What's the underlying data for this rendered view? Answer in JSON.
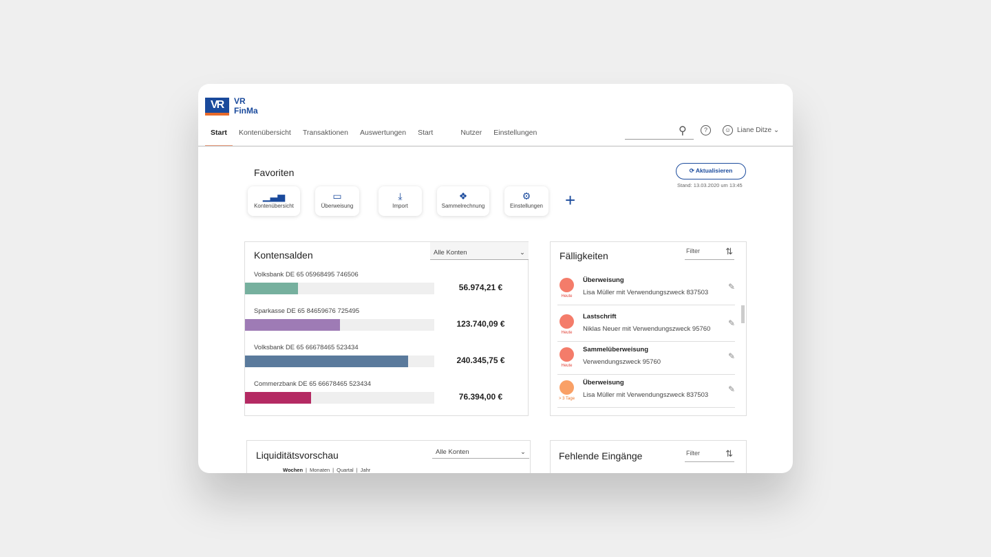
{
  "brand": {
    "line1": "VR",
    "line2": "FinMa",
    "logo_text": "VR"
  },
  "nav": {
    "items": [
      "Start",
      "Kontenübersicht",
      "Transaktionen",
      "Auswertungen",
      "Start",
      "Nutzer",
      "Einstellungen"
    ],
    "active": "Start"
  },
  "header": {
    "user": "Liane Ditze",
    "search_placeholder": ""
  },
  "favorites": {
    "title": "Favoriten",
    "items": [
      {
        "label": "Kontenübersicht",
        "icon": "bar-chart-icon"
      },
      {
        "label": "Überweisung",
        "icon": "card-icon"
      },
      {
        "label": "Import",
        "icon": "import-icon"
      },
      {
        "label": "Sammelrechnung",
        "icon": "money-icon"
      },
      {
        "label": "Einstellungen",
        "icon": "gear-icon"
      }
    ],
    "add": "+"
  },
  "refresh": {
    "label": "Aktualisieren",
    "stand": "Stand: 13.03.2020 um 13:45"
  },
  "kontensalden": {
    "title": "Kontensalden",
    "select": "Alle Konten",
    "accounts": [
      {
        "name": "Volksbank DE 65 05968495 746506",
        "amount": "56.974,21 €",
        "fill": 0.28,
        "color": "#76b09e"
      },
      {
        "name": "Sparkasse DE 65 84659676 725495",
        "amount": "123.740,09 €",
        "fill": 0.5,
        "color": "#9e7bb5"
      },
      {
        "name": "Volksbank DE 65 66678465 523434",
        "amount": "240.345,75 €",
        "fill": 0.86,
        "color": "#5a7a9c"
      },
      {
        "name": "Commerzbank DE 65 66678465 523434",
        "amount": "76.394,00 €",
        "fill": 0.35,
        "color": "#b42a63"
      }
    ]
  },
  "faelligkeiten": {
    "title": "Fälligkeiten",
    "filter": "Filter",
    "items": [
      {
        "title": "Überweisung",
        "sub": "Lisa Müller mit Verwendungszweck 837503",
        "due": "Heute",
        "color": "#f47c6a",
        "due_color": "#e0443a"
      },
      {
        "title": "Lastschrift",
        "sub": "Niklas Neuer mit Verwendungszweck 95760",
        "due": "Heute",
        "color": "#f47c6a",
        "due_color": "#e0443a"
      },
      {
        "title": "Sammelüberweisung",
        "sub": "Verwendungszweck 95760",
        "due": "Heute",
        "color": "#f47c6a",
        "due_color": "#e0443a"
      },
      {
        "title": "Überweisung",
        "sub": "Lisa Müller mit Verwendungszweck 837503",
        "due": "> 3 Tage",
        "color": "#f9a066",
        "due_color": "#e8742a"
      }
    ]
  },
  "liquiditaet": {
    "title": "Liquiditätsvorschau",
    "select": "Alle Konten",
    "tabs": [
      "Wochen",
      "Monaten",
      "Quartal",
      "Jahr"
    ]
  },
  "fehlende": {
    "title": "Fehlende Eingänge",
    "filter": "Filter"
  }
}
